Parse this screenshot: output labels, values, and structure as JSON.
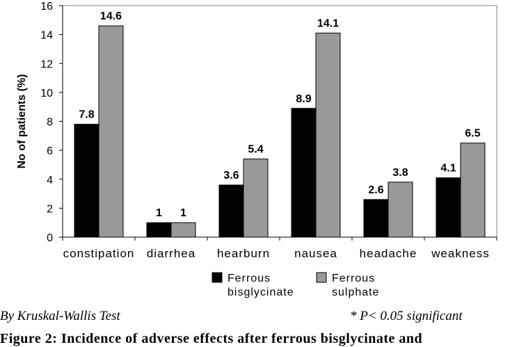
{
  "chart_data": {
    "type": "bar",
    "title": "",
    "xlabel": "",
    "ylabel": "No of patients (%)",
    "ylim": [
      0,
      16
    ],
    "yticks": [
      0,
      2,
      4,
      6,
      8,
      10,
      12,
      14,
      16
    ],
    "categories": [
      "constipation",
      "diarrhea",
      "hearburn",
      "nausea",
      "headache",
      "weakness"
    ],
    "series": [
      {
        "name": "Ferrous bisglycinate",
        "legend_lines": [
          "Ferrous",
          "bisglycinate"
        ],
        "color": "#000000",
        "values": [
          7.8,
          1,
          3.6,
          8.9,
          2.6,
          4.1
        ]
      },
      {
        "name": "Ferrous sulphate",
        "legend_lines": [
          "Ferrous",
          "sulphate"
        ],
        "color": "#999999",
        "values": [
          14.6,
          1,
          5.4,
          14.1,
          3.8,
          6.5
        ]
      }
    ],
    "data_labels": true,
    "grid": false,
    "legend": "bottom"
  },
  "notes": {
    "test": "By Kruskal-Wallis Test",
    "significance": "* P< 0.05 significant"
  },
  "caption": "Figure 2: Incidence of adverse effects after ferrous bisglycinate and"
}
